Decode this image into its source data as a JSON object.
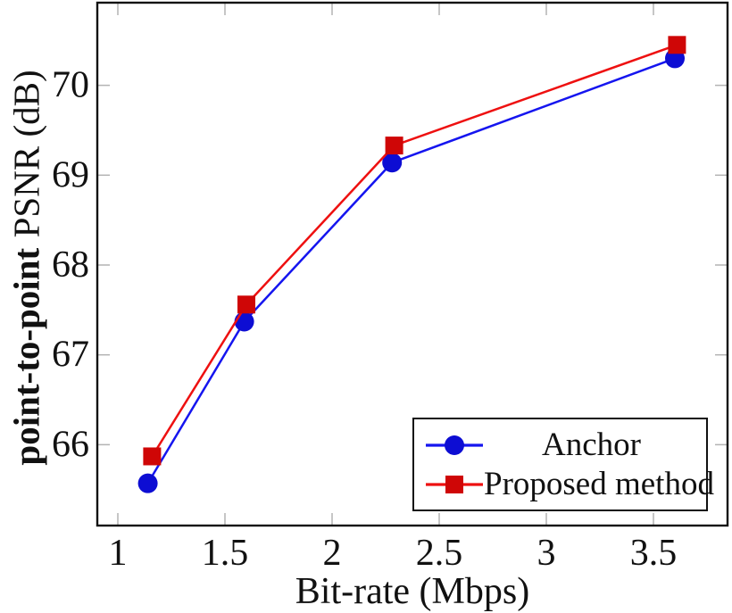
{
  "chart_data": {
    "type": "line",
    "title": "",
    "xlabel": "Bit-rate (Mbps)",
    "ylabel": "point-to-point PSNR (dB)",
    "ylabel_bold_part": "point-to-point",
    "ylabel_regular_part": "PSNR (dB)",
    "xlim": [
      0.9,
      3.85
    ],
    "ylim": [
      65.09,
      70.93
    ],
    "x_ticks": [
      1,
      1.5,
      2,
      2.5,
      3,
      3.5
    ],
    "x_tick_labels": [
      "1",
      "1.5",
      "2",
      "2.5",
      "3",
      "3.5"
    ],
    "y_ticks": [
      66,
      67,
      68,
      69,
      70
    ],
    "y_tick_labels": [
      "66",
      "67",
      "68",
      "69",
      "70"
    ],
    "grid": false,
    "legend_position": "inside lower right",
    "axis_color": "#111111",
    "tick_color": "#b3b3b3",
    "series": [
      {
        "name": "Anchor",
        "marker": "circle",
        "line_color": "#1515ef",
        "marker_color": "#0d0dd3",
        "x": [
          1.14,
          1.59,
          2.28,
          3.6
        ],
        "y": [
          65.57,
          67.37,
          69.14,
          70.3
        ]
      },
      {
        "name": "Proposed method",
        "marker": "square",
        "line_color": "#ee1010",
        "marker_color": "#cf0606",
        "x": [
          1.16,
          1.6,
          2.29,
          3.61
        ],
        "y": [
          65.87,
          67.56,
          69.33,
          70.45
        ]
      }
    ]
  }
}
